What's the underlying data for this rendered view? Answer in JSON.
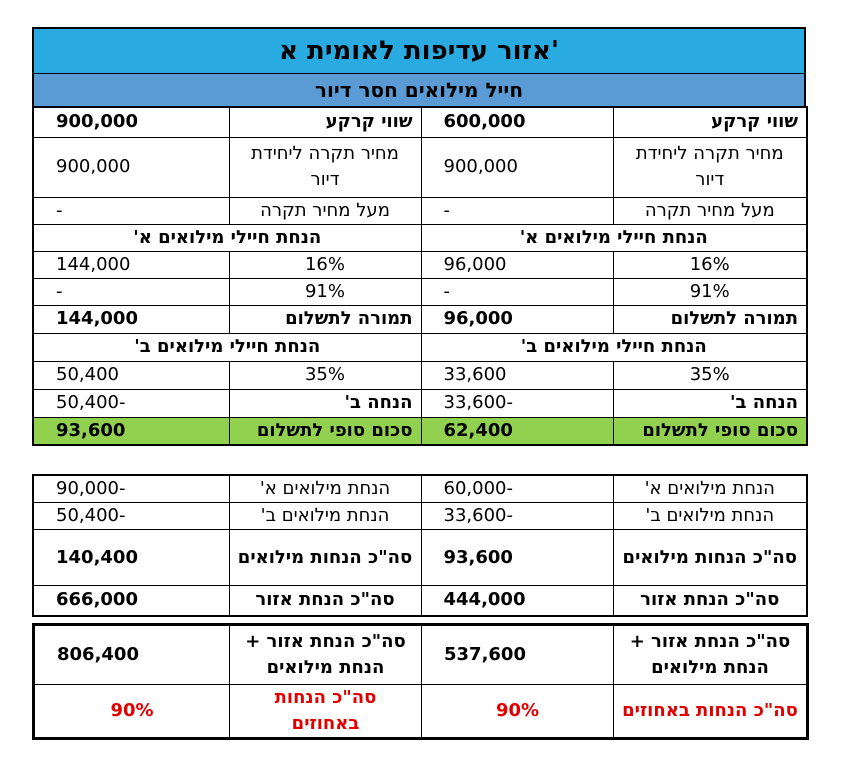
{
  "title": "אזור עדיפות לאומית א'",
  "subtitle": "חייל מילואים חסר דיור",
  "table1": {
    "rows": [
      [
        "שווי קרקע",
        "600,000",
        "שווי קרקע",
        "900,000"
      ],
      [
        "מחיר תקרה ליחידת דיור",
        "900,000",
        "מחיר תקרה ליחידת דיור",
        "900,000"
      ],
      [
        "מעל מחיר תקרה",
        "-",
        "מעל מחיר תקרה",
        "-"
      ],
      [
        "הנחת חיילי מילואים א'",
        "הנחת חיילי מילואים א'"
      ],
      [
        "16%",
        "96,000",
        "16%",
        "144,000"
      ],
      [
        "91%",
        "-",
        "91%",
        "-"
      ],
      [
        "תמורה לתשלום",
        "96,000",
        "תמורה לתשלום",
        "144,000"
      ],
      [
        "הנחת חיילי מילואים ב'",
        "הנחת חיילי מילואים ב'"
      ],
      [
        "35%",
        "33,600",
        "35%",
        "50,400"
      ],
      [
        "הנחה ב'",
        "-33,600",
        "הנחה ב'",
        "-50,400"
      ],
      [
        "סכום סופי לתשלום",
        "62,400",
        "סכום סופי לתשלום",
        "93,600"
      ]
    ]
  },
  "table2": {
    "rows": [
      [
        "הנחת מילואים א'",
        "-60,000",
        "הנחת מילואים א'",
        "-90,000"
      ],
      [
        "הנחת מילואים ב'",
        "-33,600",
        "הנחת מילואים ב'",
        "-50,400"
      ],
      [
        "סה\"כ הנחות מילואים",
        "93,600",
        "סה\"כ הנחות מילואים",
        "140,400"
      ],
      [
        "סה\"כ הנחת אזור",
        "444,000",
        "סה\"כ הנחת אזור",
        "666,000"
      ]
    ]
  },
  "table3": {
    "rows": [
      [
        "סה\"כ הנחת אזור + הנחת מילואים",
        "537,600",
        "סה\"כ הנחת אזור + הנחת מילואים",
        "806,400"
      ],
      [
        "סה\"כ הנחות באחוזים",
        "90%",
        "סה\"כ הנחות באחוזים",
        "90%"
      ]
    ]
  }
}
